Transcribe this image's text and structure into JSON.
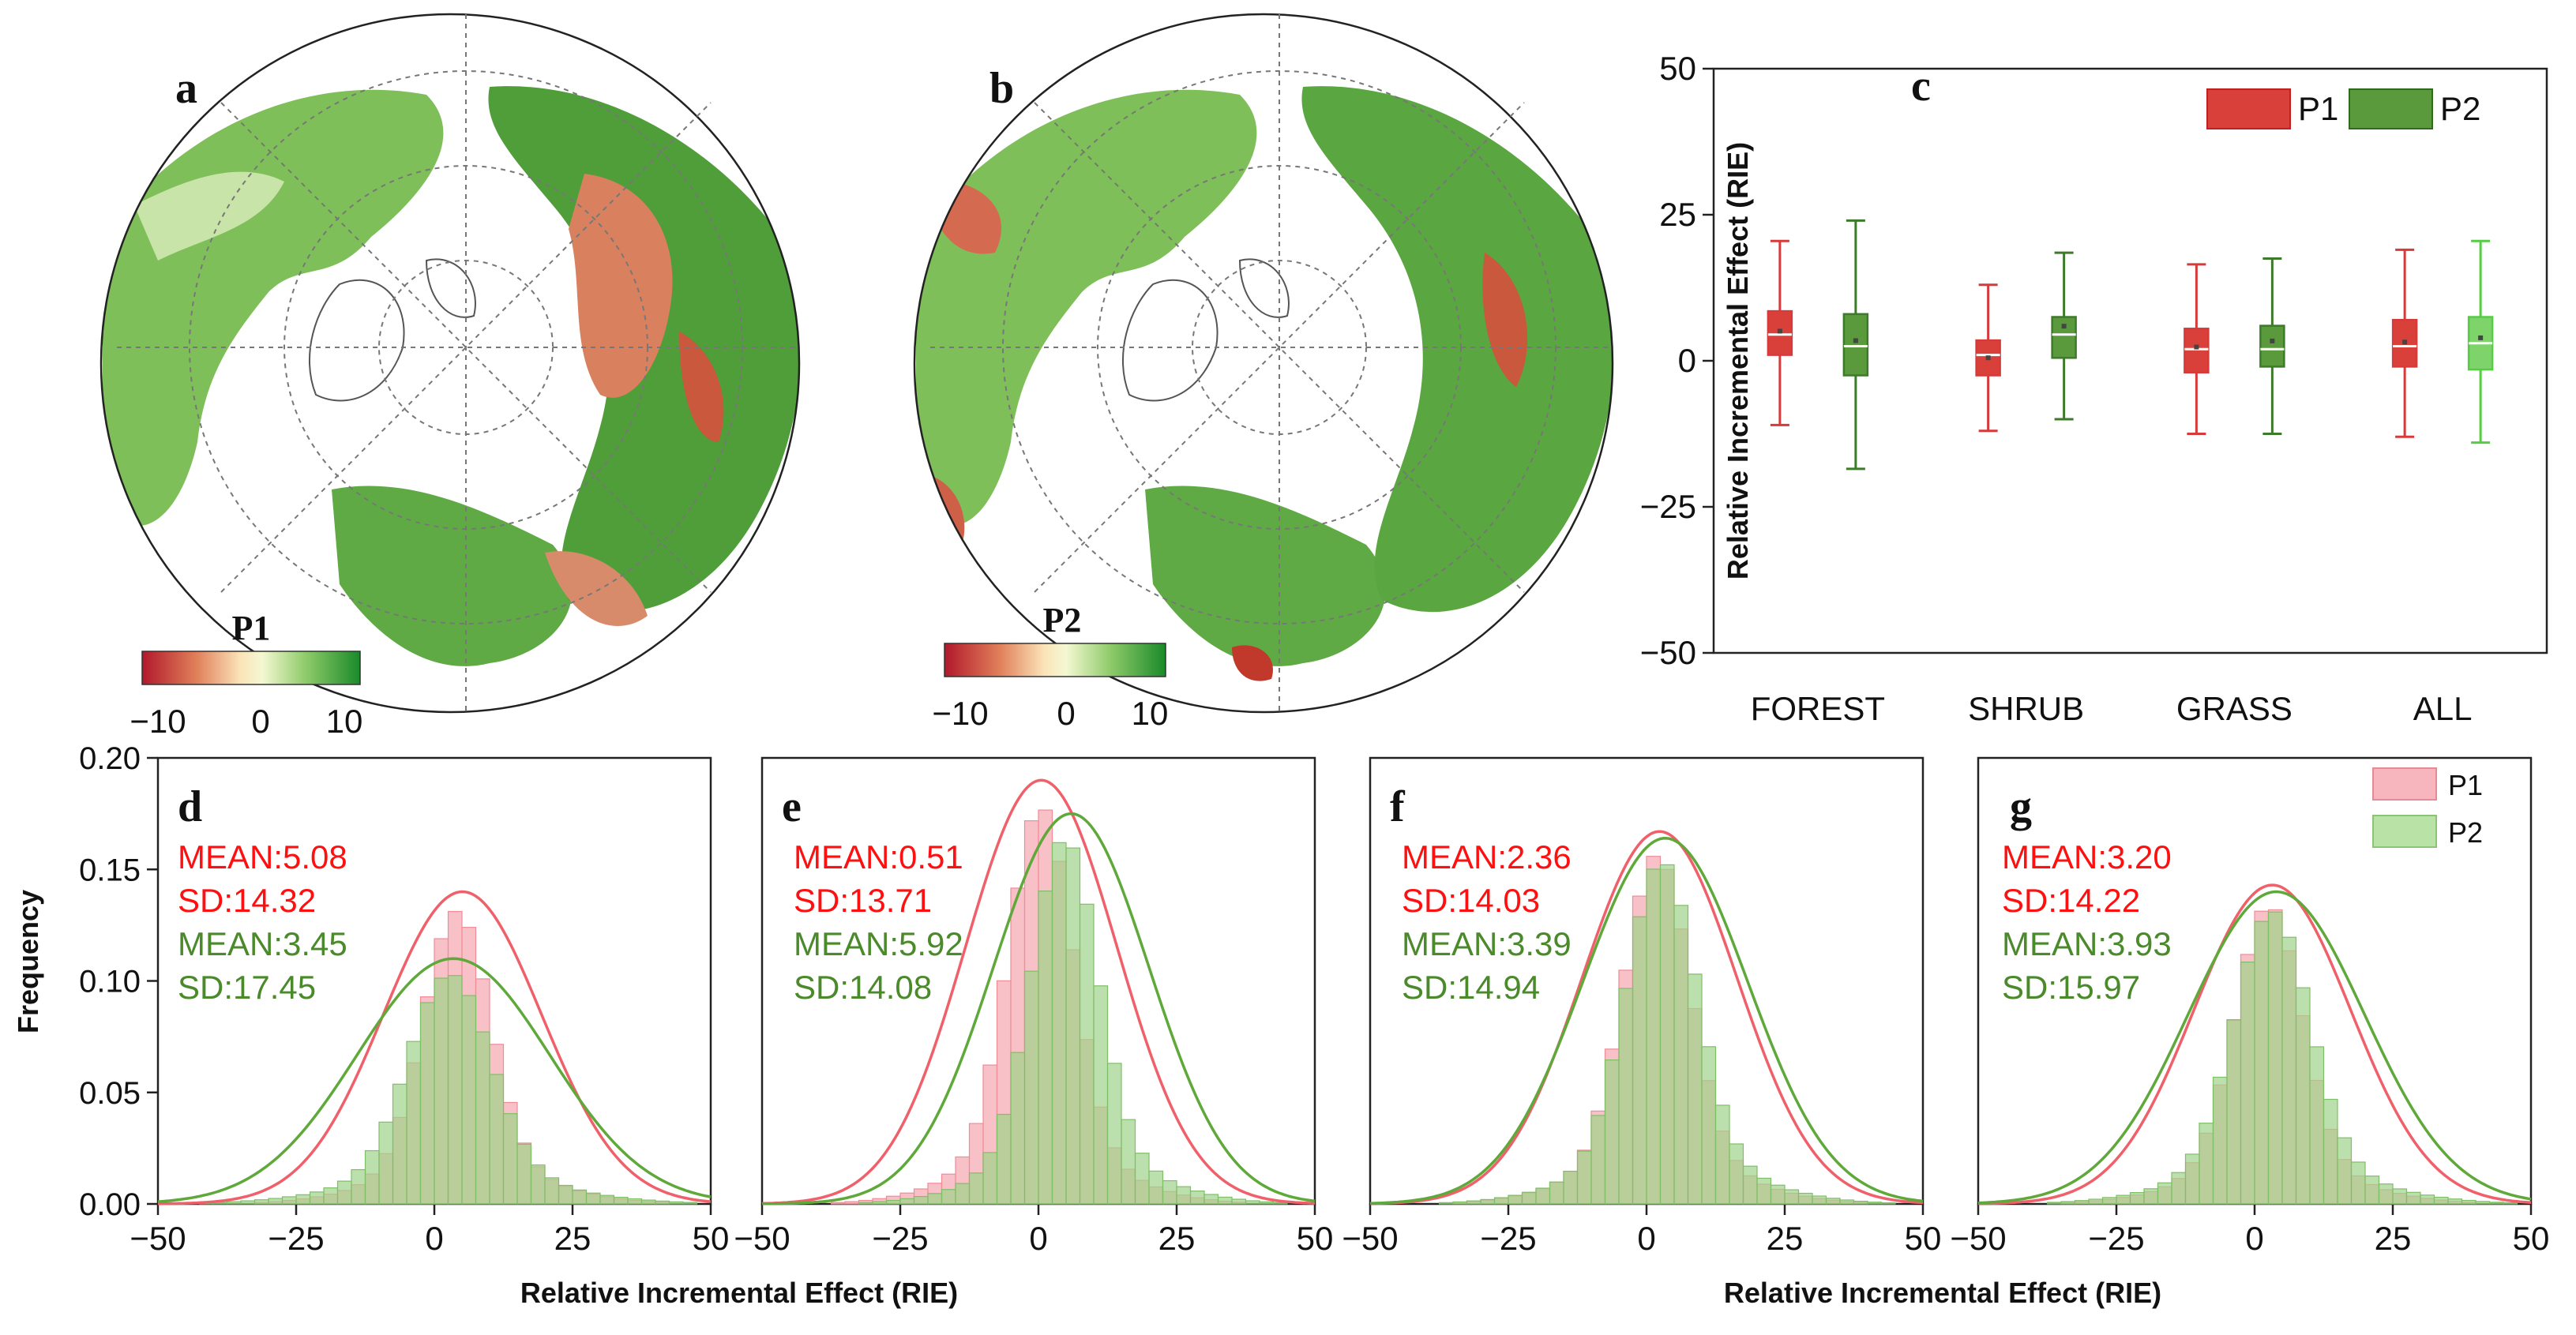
{
  "colors": {
    "p1": "#e33333",
    "p2": "#5a9a3c",
    "p1_fill": "#f7b6bd",
    "p2_fill": "#9fd38a",
    "p1_text": "#ff1010",
    "p2_text": "#4a8a2a",
    "map_red": "#c0392b",
    "map_green": "#2e8b2e"
  },
  "maps": [
    {
      "panel": "a",
      "colorbar_label": "P1",
      "ticks": [
        "−10",
        "0",
        "10"
      ]
    },
    {
      "panel": "b",
      "colorbar_label": "P2",
      "ticks": [
        "−10",
        "0",
        "10"
      ]
    }
  ],
  "chart_data": [
    {
      "panel": "c",
      "type": "box",
      "ylabel": "Relative Incremental Effect (RIE)",
      "ylim": [
        -50,
        50
      ],
      "yticks": [
        -50,
        -25,
        0,
        25,
        50
      ],
      "yticklabels": [
        "−50",
        "−25",
        "0",
        "25",
        "50"
      ],
      "categories": [
        "FOREST",
        "SHRUB",
        "GRASS",
        "ALL"
      ],
      "legend": [
        "P1",
        "P2"
      ],
      "series": [
        {
          "name": "P1",
          "boxes": [
            {
              "min": -11,
              "q1": 1,
              "median": 4.5,
              "q3": 8.5,
              "max": 20.5,
              "mean": 5.08
            },
            {
              "min": -12,
              "q1": -2.5,
              "median": 1,
              "q3": 3.5,
              "max": 13,
              "mean": 0.51
            },
            {
              "min": -12.5,
              "q1": -2,
              "median": 2,
              "q3": 5.5,
              "max": 16.5,
              "mean": 2.36
            },
            {
              "min": -13,
              "q1": -1,
              "median": 2.5,
              "q3": 7,
              "max": 19,
              "mean": 3.2
            }
          ]
        },
        {
          "name": "P2",
          "boxes": [
            {
              "min": -18.5,
              "q1": -2.5,
              "median": 2.5,
              "q3": 8,
              "max": 24,
              "mean": 3.45
            },
            {
              "min": -10,
              "q1": 0.5,
              "median": 4.5,
              "q3": 7.5,
              "max": 18.5,
              "mean": 5.92
            },
            {
              "min": -12.5,
              "q1": -1,
              "median": 2,
              "q3": 6,
              "max": 17.5,
              "mean": 3.39
            },
            {
              "min": -14,
              "q1": -1.5,
              "median": 3,
              "q3": 7.5,
              "max": 20.5,
              "mean": 3.93
            }
          ]
        }
      ]
    },
    {
      "panel": "d",
      "type": "histogram",
      "category": "FOREST",
      "xlabel": "Relative Incremental Effect (RIE)",
      "ylabel": "Frequency",
      "xlim": [
        -50,
        50
      ],
      "ylim": [
        0,
        0.2
      ],
      "xticks": [
        "−50",
        "−25",
        "0",
        "25",
        "50"
      ],
      "yticks": [
        "0.00",
        "0.05",
        "0.10",
        "0.15",
        "0.20"
      ],
      "bin_width": 2.5,
      "series": [
        {
          "name": "P1",
          "mean": 5.08,
          "sd": 14.32,
          "curve_peak": 0.14
        },
        {
          "name": "P2",
          "mean": 3.45,
          "sd": 17.45,
          "curve_peak": 0.11
        }
      ],
      "annotations": {
        "p1_mean": "MEAN:5.08",
        "p1_sd": "SD:14.32",
        "p2_mean": "MEAN:3.45",
        "p2_sd": "SD:17.45"
      }
    },
    {
      "panel": "e",
      "type": "histogram",
      "category": "SHRUB",
      "xlim": [
        -50,
        50
      ],
      "ylim": [
        0,
        0.2
      ],
      "xticks": [
        "−50",
        "−25",
        "0",
        "25",
        "50"
      ],
      "bin_width": 2.5,
      "series": [
        {
          "name": "P1",
          "mean": 0.51,
          "sd": 13.71,
          "curve_peak": 0.19
        },
        {
          "name": "P2",
          "mean": 5.92,
          "sd": 14.08,
          "curve_peak": 0.175
        }
      ],
      "annotations": {
        "p1_mean": "MEAN:0.51",
        "p1_sd": "SD:13.71",
        "p2_mean": "MEAN:5.92",
        "p2_sd": "SD:14.08"
      }
    },
    {
      "panel": "f",
      "type": "histogram",
      "category": "GRASS",
      "xlabel": "Relative Incremental Effect (RIE)",
      "xlim": [
        -50,
        50
      ],
      "ylim": [
        0,
        0.2
      ],
      "xticks": [
        "−50",
        "−25",
        "0",
        "25",
        "50"
      ],
      "bin_width": 2.5,
      "series": [
        {
          "name": "P1",
          "mean": 2.36,
          "sd": 14.03,
          "curve_peak": 0.167
        },
        {
          "name": "P2",
          "mean": 3.39,
          "sd": 14.94,
          "curve_peak": 0.164
        }
      ],
      "annotations": {
        "p1_mean": "MEAN:2.36",
        "p1_sd": "SD:14.03",
        "p2_mean": "MEAN:3.39",
        "p2_sd": "SD:14.94"
      }
    },
    {
      "panel": "g",
      "type": "histogram",
      "category": "ALL",
      "xlim": [
        -50,
        50
      ],
      "ylim": [
        0,
        0.2
      ],
      "xticks": [
        "−50",
        "−25",
        "0",
        "25",
        "50"
      ],
      "bin_width": 2.5,
      "legend": [
        "P1",
        "P2"
      ],
      "series": [
        {
          "name": "P1",
          "mean": 3.2,
          "sd": 14.22,
          "curve_peak": 0.143
        },
        {
          "name": "P2",
          "mean": 3.93,
          "sd": 15.97,
          "curve_peak": 0.14
        }
      ],
      "annotations": {
        "p1_mean": "MEAN:3.20",
        "p1_sd": "SD:14.22",
        "p2_mean": "MEAN:3.93",
        "p2_sd": "SD:15.97"
      }
    }
  ]
}
